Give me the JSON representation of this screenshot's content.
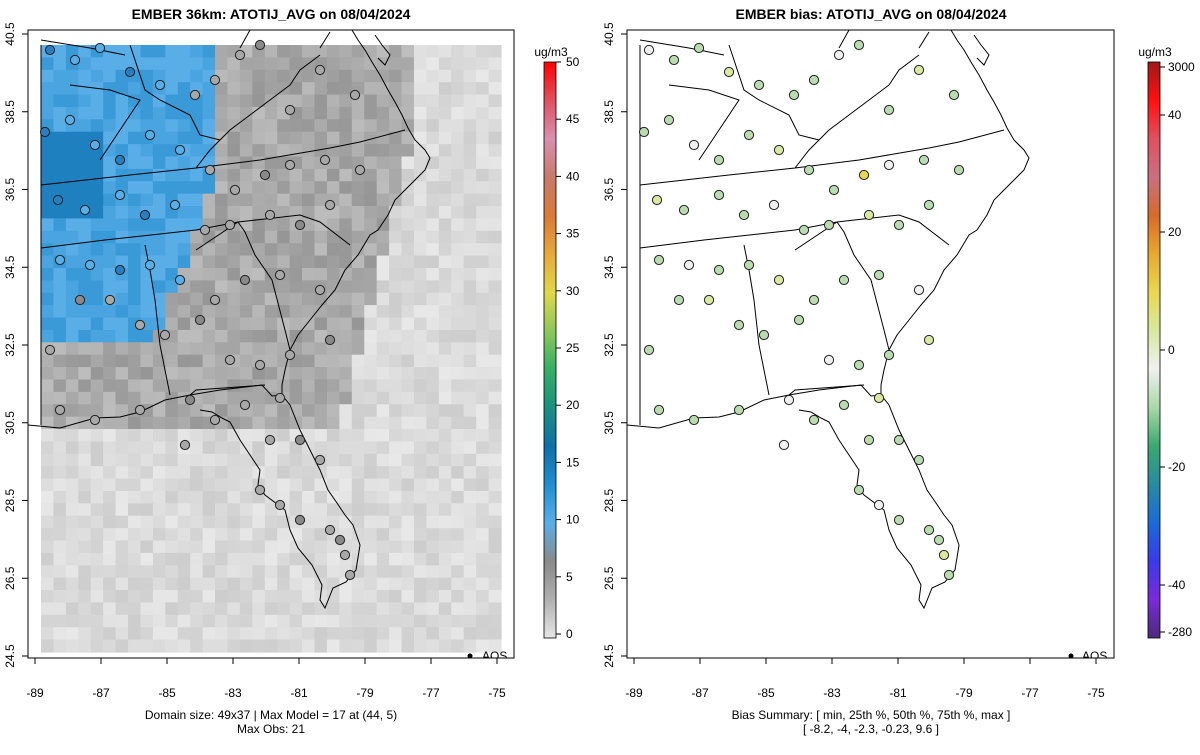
{
  "left": {
    "title": "EMBER 36km: ATOTIJ_AVG on 08/04/2024",
    "x_ticks": [
      "-89",
      "-87",
      "-85",
      "-83",
      "-81",
      "-79",
      "-77",
      "-75"
    ],
    "x_tick_values": [
      -89,
      -87,
      -85,
      -83,
      -81,
      -79,
      -77,
      -75
    ],
    "y_ticks": [
      "24.5",
      "26.5",
      "28.5",
      "30.5",
      "32.5",
      "34.5",
      "36.5",
      "38.5",
      "40.5"
    ],
    "y_tick_values": [
      24.5,
      26.5,
      28.5,
      30.5,
      32.5,
      34.5,
      36.5,
      38.5,
      40.5
    ],
    "legend_text": "AQS",
    "footer_line1": "Domain size: 49x37 | Max Model = 17 at (44, 5)",
    "footer_line2": "Max Obs: 21",
    "colorbar": {
      "unit": "ug/m3",
      "ticks": [
        "0",
        "5",
        "10",
        "15",
        "20",
        "25",
        "30",
        "35",
        "40",
        "45",
        "50"
      ],
      "tick_values": [
        0,
        5,
        10,
        15,
        20,
        25,
        30,
        35,
        40,
        45,
        50
      ],
      "range": [
        0,
        50
      ],
      "colors": [
        "#e6e6e6",
        "#b0b0b0",
        "#8a8a8a",
        "#5aaee8",
        "#1f8ed0",
        "#0f6fa8",
        "#1a9080",
        "#35b065",
        "#8cc85a",
        "#e0d84a",
        "#e8a83a",
        "#d87a3a",
        "#c87a6a",
        "#d890b0",
        "#e05060",
        "#ff0000"
      ]
    }
  },
  "right": {
    "title": "EMBER bias: ATOTIJ_AVG on 08/04/2024",
    "x_ticks": [
      "-89",
      "-87",
      "-85",
      "-83",
      "-81",
      "-79",
      "-77",
      "-75"
    ],
    "x_tick_values": [
      -89,
      -87,
      -85,
      -83,
      -81,
      -79,
      -77,
      -75
    ],
    "y_ticks": [
      "24.5",
      "26.5",
      "28.5",
      "30.5",
      "32.5",
      "34.5",
      "36.5",
      "38.5",
      "40.5"
    ],
    "y_tick_values": [
      24.5,
      26.5,
      28.5,
      30.5,
      32.5,
      34.5,
      36.5,
      38.5,
      40.5
    ],
    "legend_text": "AQS",
    "footer_line1": "Bias Summary: [ min, 25th %, 50th %, 75th %, max ]",
    "footer_line2": "[ -8.2,   -4,   -2.3,   -0.23,   9.6 ]",
    "colorbar": {
      "unit": "ug/m3",
      "ticks": [
        "3000",
        "40",
        "20",
        "0",
        "-20",
        "-40",
        "-280"
      ],
      "colors": [
        "#4a2a7a",
        "#7a2ad8",
        "#3a3ae8",
        "#1a6ad8",
        "#2a8aa0",
        "#3aa870",
        "#a8d8a8",
        "#f0f0f0",
        "#d8e8a0",
        "#e8d850",
        "#e8a830",
        "#d86a2a",
        "#c87080",
        "#e05060",
        "#ff1010",
        "#a01818"
      ]
    }
  }
}
